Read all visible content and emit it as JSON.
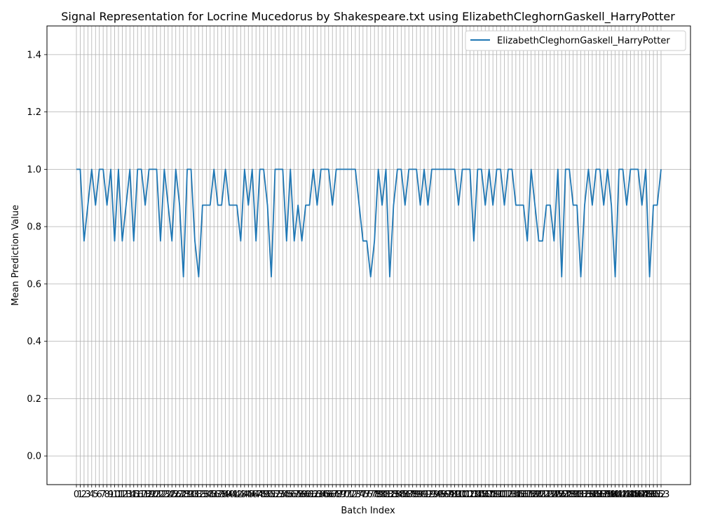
{
  "chart_data": {
    "type": "line",
    "title": "Signal Representation for Locrine Mucedorus by Shakespeare.txt using ElizabethCleghornGaskell_HarryPotter",
    "xlabel": "Batch Index",
    "ylabel": "Mean Prediction Value",
    "xlim": [
      0,
      153
    ],
    "ylim": [
      -0.1,
      1.5
    ],
    "yticks": [
      0.0,
      0.2,
      0.4,
      0.6,
      0.8,
      1.0,
      1.2,
      1.4
    ],
    "grid": true,
    "legend_position": "top-right",
    "series": [
      {
        "name": "ElizabethCleghornGaskell_HarryPotter",
        "color": "#1f77b4",
        "values": [
          1.0,
          1.0,
          0.75,
          0.875,
          1.0,
          0.875,
          1.0,
          1.0,
          0.875,
          1.0,
          0.75,
          1.0,
          0.75,
          0.875,
          1.0,
          0.75,
          1.0,
          1.0,
          0.875,
          1.0,
          1.0,
          1.0,
          0.75,
          1.0,
          0.875,
          0.75,
          1.0,
          0.875,
          0.625,
          1.0,
          1.0,
          0.75,
          0.625,
          0.875,
          0.875,
          0.875,
          1.0,
          0.875,
          0.875,
          1.0,
          0.875,
          0.875,
          0.875,
          0.75,
          1.0,
          0.875,
          1.0,
          0.75,
          1.0,
          1.0,
          0.875,
          0.625,
          1.0,
          1.0,
          1.0,
          0.75,
          1.0,
          0.75,
          0.875,
          0.75,
          0.875,
          0.875,
          1.0,
          0.875,
          1.0,
          1.0,
          1.0,
          0.875,
          1.0,
          1.0,
          1.0,
          1.0,
          1.0,
          1.0,
          0.875,
          0.75,
          0.75,
          0.625,
          0.75,
          1.0,
          0.875,
          1.0,
          0.625,
          0.875,
          1.0,
          1.0,
          0.875,
          1.0,
          1.0,
          1.0,
          0.875,
          1.0,
          0.875,
          1.0,
          1.0,
          1.0,
          1.0,
          1.0,
          1.0,
          1.0,
          0.875,
          1.0,
          1.0,
          1.0,
          0.75,
          1.0,
          1.0,
          0.875,
          1.0,
          0.875,
          1.0,
          1.0,
          0.875,
          1.0,
          1.0,
          0.875,
          0.875,
          0.875,
          0.75,
          1.0,
          0.875,
          0.75,
          0.75,
          0.875,
          0.875,
          0.75,
          1.0,
          0.625,
          1.0,
          1.0,
          0.875,
          0.875,
          0.625,
          0.875,
          1.0,
          0.875,
          1.0,
          1.0,
          0.875,
          1.0,
          0.875,
          0.625,
          1.0,
          1.0,
          0.875,
          1.0,
          1.0,
          1.0,
          0.875,
          1.0,
          0.625,
          0.875,
          0.875,
          1.0
        ]
      }
    ]
  }
}
